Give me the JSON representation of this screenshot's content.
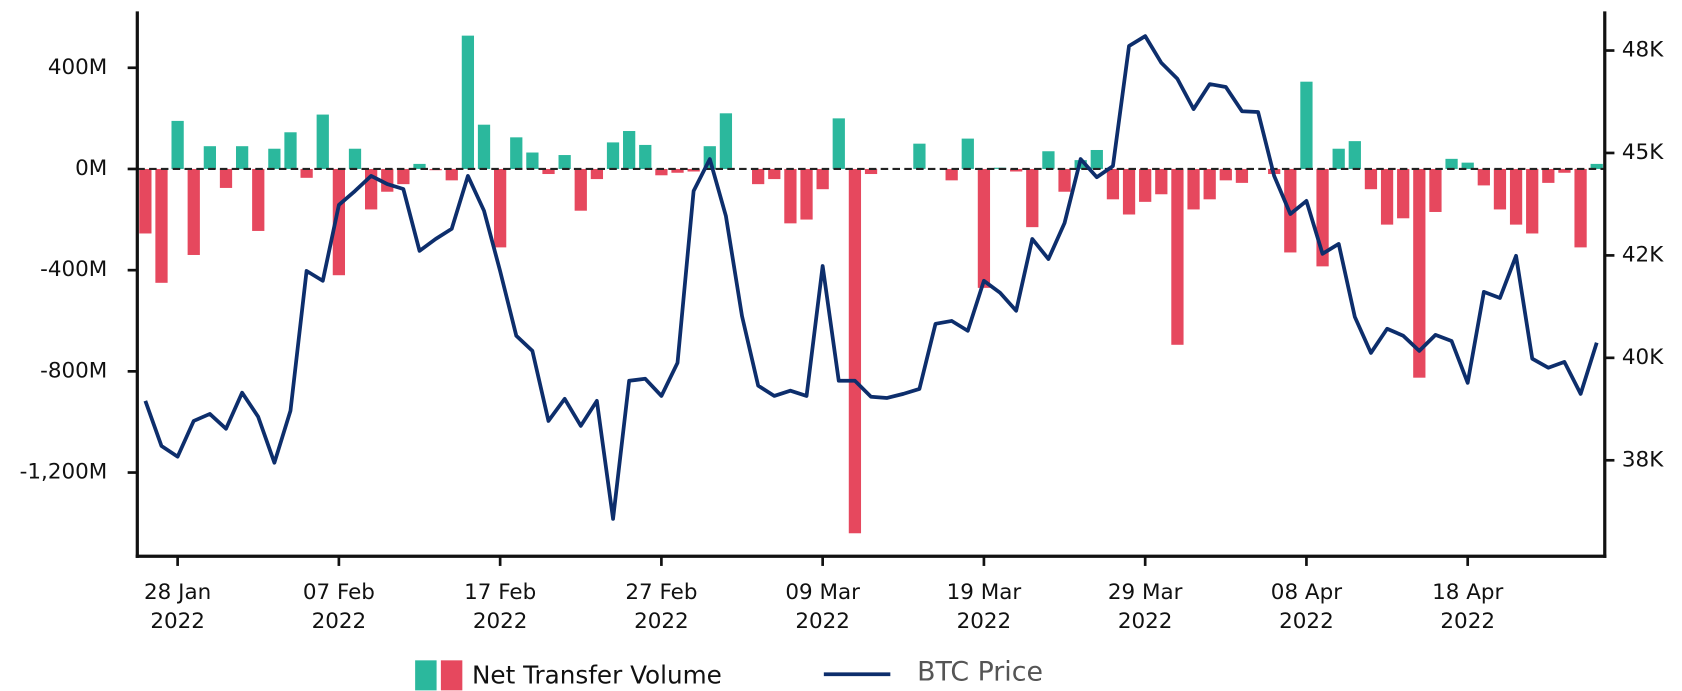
{
  "chart_data": {
    "type": "combo",
    "x": [
      "2022-01-26",
      "2022-01-27",
      "2022-01-28",
      "2022-01-29",
      "2022-01-30",
      "2022-01-31",
      "2022-02-01",
      "2022-02-02",
      "2022-02-03",
      "2022-02-04",
      "2022-02-05",
      "2022-02-06",
      "2022-02-07",
      "2022-02-08",
      "2022-02-09",
      "2022-02-10",
      "2022-02-11",
      "2022-02-12",
      "2022-02-13",
      "2022-02-14",
      "2022-02-15",
      "2022-02-16",
      "2022-02-17",
      "2022-02-18",
      "2022-02-19",
      "2022-02-20",
      "2022-02-21",
      "2022-02-22",
      "2022-02-23",
      "2022-02-24",
      "2022-02-25",
      "2022-02-26",
      "2022-02-27",
      "2022-02-28",
      "2022-03-01",
      "2022-03-02",
      "2022-03-03",
      "2022-03-04",
      "2022-03-05",
      "2022-03-06",
      "2022-03-07",
      "2022-03-08",
      "2022-03-09",
      "2022-03-10",
      "2022-03-11",
      "2022-03-12",
      "2022-03-13",
      "2022-03-14",
      "2022-03-15",
      "2022-03-16",
      "2022-03-17",
      "2022-03-18",
      "2022-03-19",
      "2022-03-20",
      "2022-03-21",
      "2022-03-22",
      "2022-03-23",
      "2022-03-24",
      "2022-03-25",
      "2022-03-26",
      "2022-03-27",
      "2022-03-28",
      "2022-03-29",
      "2022-03-30",
      "2022-03-31",
      "2022-04-01",
      "2022-04-02",
      "2022-04-03",
      "2022-04-04",
      "2022-04-05",
      "2022-04-06",
      "2022-04-07",
      "2022-04-08",
      "2022-04-09",
      "2022-04-10",
      "2022-04-11",
      "2022-04-12",
      "2022-04-13",
      "2022-04-14",
      "2022-04-15",
      "2022-04-16",
      "2022-04-17",
      "2022-04-18",
      "2022-04-19",
      "2022-04-20",
      "2022-04-21",
      "2022-04-22",
      "2022-04-23",
      "2022-04-24",
      "2022-04-25",
      "2022-04-26"
    ],
    "series": [
      {
        "name": "Net Transfer Volume",
        "type": "bar",
        "color_positive": "#2bb89d",
        "color_negative": "#e6485e",
        "values": [
          -255,
          -450,
          190,
          -340,
          90,
          -75,
          90,
          -245,
          80,
          145,
          -35,
          215,
          -420,
          80,
          -160,
          -90,
          -60,
          20,
          -5,
          -45,
          527,
          175,
          -310,
          125,
          65,
          -20,
          55,
          -165,
          -40,
          105,
          150,
          95,
          -25,
          -15,
          -10,
          90,
          220,
          0,
          -60,
          -40,
          -215,
          -200,
          -80,
          200,
          -1440,
          -20,
          0,
          0,
          100,
          0,
          -45,
          120,
          -470,
          5,
          -10,
          -230,
          70,
          -90,
          35,
          75,
          -120,
          -180,
          -130,
          -100,
          -695,
          -160,
          -120,
          -45,
          -55,
          0,
          -20,
          -330,
          345,
          -385,
          80,
          110,
          -80,
          -220,
          -195,
          -825,
          -170,
          40,
          25,
          -65,
          -160,
          -220,
          -255,
          -55,
          -15,
          -310,
          20
        ]
      },
      {
        "name": "BTC Price",
        "type": "line",
        "axis": "y2",
        "color": "#0d2e6c",
        "values": [
          38950,
          37850,
          37590,
          38460,
          38630,
          38270,
          39150,
          38560,
          37440,
          38710,
          42120,
          41880,
          43730,
          44070,
          44440,
          44240,
          44120,
          42610,
          42900,
          43150,
          44440,
          43590,
          42120,
          40540,
          40170,
          38460,
          39000,
          38340,
          38950,
          36070,
          39440,
          39490,
          39070,
          39880,
          44070,
          44850,
          43460,
          41020,
          39320,
          39070,
          39200,
          39070,
          42240,
          39440,
          39440,
          39050,
          39020,
          39120,
          39240,
          40830,
          40900,
          40660,
          41880,
          41590,
          41150,
          42900,
          42410,
          43290,
          44850,
          44410,
          44680,
          47610,
          47850,
          47200,
          46810,
          46070,
          46680,
          46610,
          46020,
          46000,
          44440,
          43510,
          43830,
          42540,
          42780,
          41000,
          40120,
          40710,
          40540,
          40170,
          40560,
          40410,
          39390,
          41610,
          41460,
          42490,
          39980,
          39760,
          39900,
          39120,
          40370
        ]
      }
    ],
    "xlim": [
      "2022-01-26",
      "2022-04-26"
    ],
    "xticks": [
      {
        "value": "2022-01-28",
        "label": "28 Jan\n2022"
      },
      {
        "value": "2022-02-07",
        "label": "07 Feb\n2022"
      },
      {
        "value": "2022-02-17",
        "label": "17 Feb\n2022"
      },
      {
        "value": "2022-02-27",
        "label": "27 Feb\n2022"
      },
      {
        "value": "2022-03-09",
        "label": "09 Mar\n2022"
      },
      {
        "value": "2022-03-19",
        "label": "19 Mar\n2022"
      },
      {
        "value": "2022-03-29",
        "label": "29 Mar\n2022"
      },
      {
        "value": "2022-04-08",
        "label": "08 Apr\n2022"
      },
      {
        "value": "2022-04-18",
        "label": "18 Apr\n2022"
      }
    ],
    "ylim": [
      -1531,
      623
    ],
    "yticks": [
      {
        "value": -1200,
        "label": "-1,200M"
      },
      {
        "value": -800,
        "label": "-800M"
      },
      {
        "value": -400,
        "label": "-400M"
      },
      {
        "value": 0,
        "label": "0M"
      },
      {
        "value": 400,
        "label": "400M"
      }
    ],
    "y2lim": [
      35157,
      48456
    ],
    "y2ticks": [
      {
        "value": 37500,
        "label": "38K"
      },
      {
        "value": 40000,
        "label": "40K"
      },
      {
        "value": 42500,
        "label": "42K"
      },
      {
        "value": 45000,
        "label": "45K"
      },
      {
        "value": 47500,
        "label": "48K"
      }
    ],
    "legend": "bottom"
  }
}
